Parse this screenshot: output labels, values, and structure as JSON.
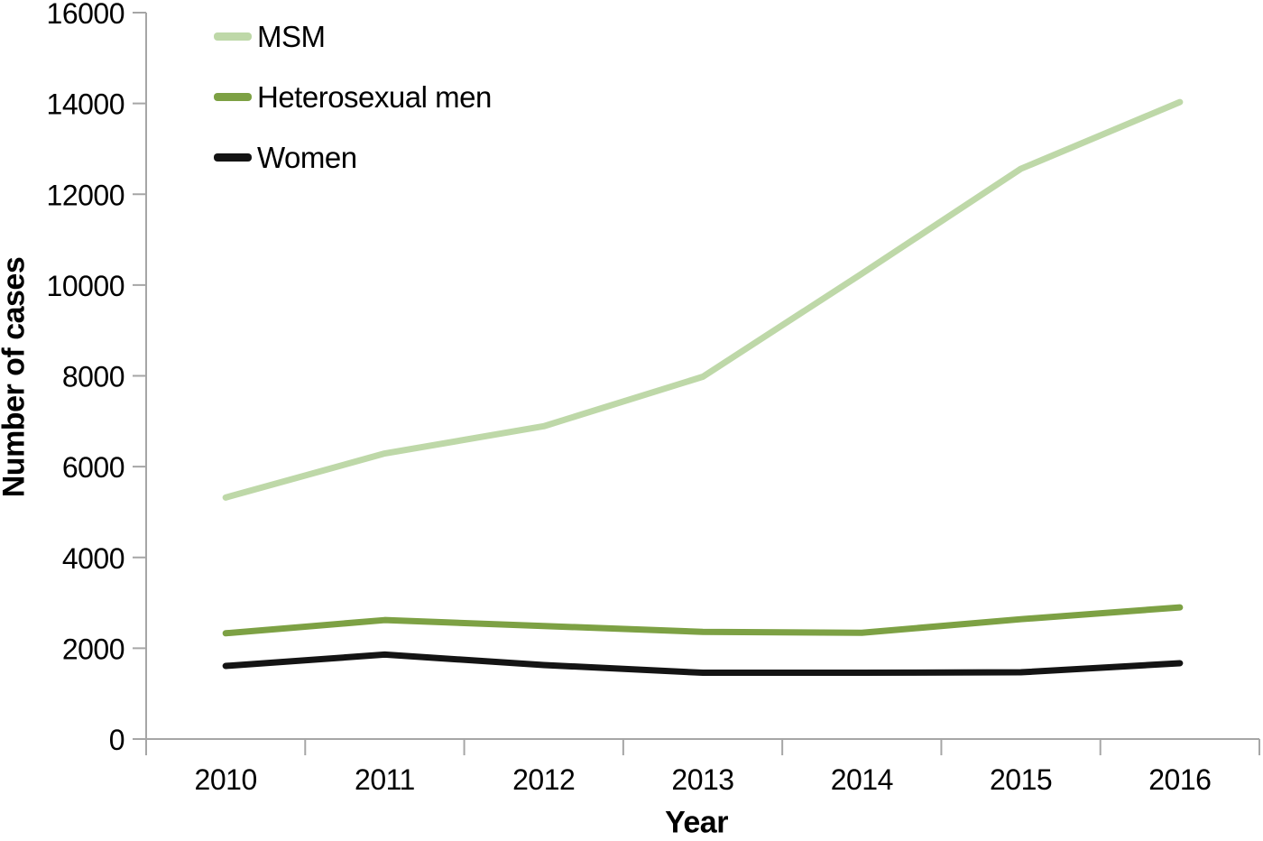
{
  "chart_data": {
    "type": "line",
    "title": "",
    "xlabel": "Year",
    "ylabel": "Number of cases",
    "categories": [
      "2010",
      "2011",
      "2012",
      "2013",
      "2014",
      "2015",
      "2016"
    ],
    "series": [
      {
        "name": "MSM",
        "color": "#bed8a8",
        "values": [
          5320,
          6290,
          6890,
          7980,
          10250,
          12560,
          14030
        ]
      },
      {
        "name": "Heterosexual men",
        "color": "#7da144",
        "values": [
          2330,
          2620,
          2490,
          2360,
          2340,
          2640,
          2900
        ]
      },
      {
        "name": "Women",
        "color": "#141414",
        "values": [
          1610,
          1860,
          1630,
          1460,
          1460,
          1470,
          1670
        ]
      }
    ],
    "ylim": [
      0,
      16000
    ],
    "y_ticks": [
      0,
      2000,
      4000,
      6000,
      8000,
      10000,
      12000,
      14000,
      16000
    ],
    "grid": false,
    "legend_position": "top-left-inside",
    "axis_color": "#a6a6a6"
  }
}
